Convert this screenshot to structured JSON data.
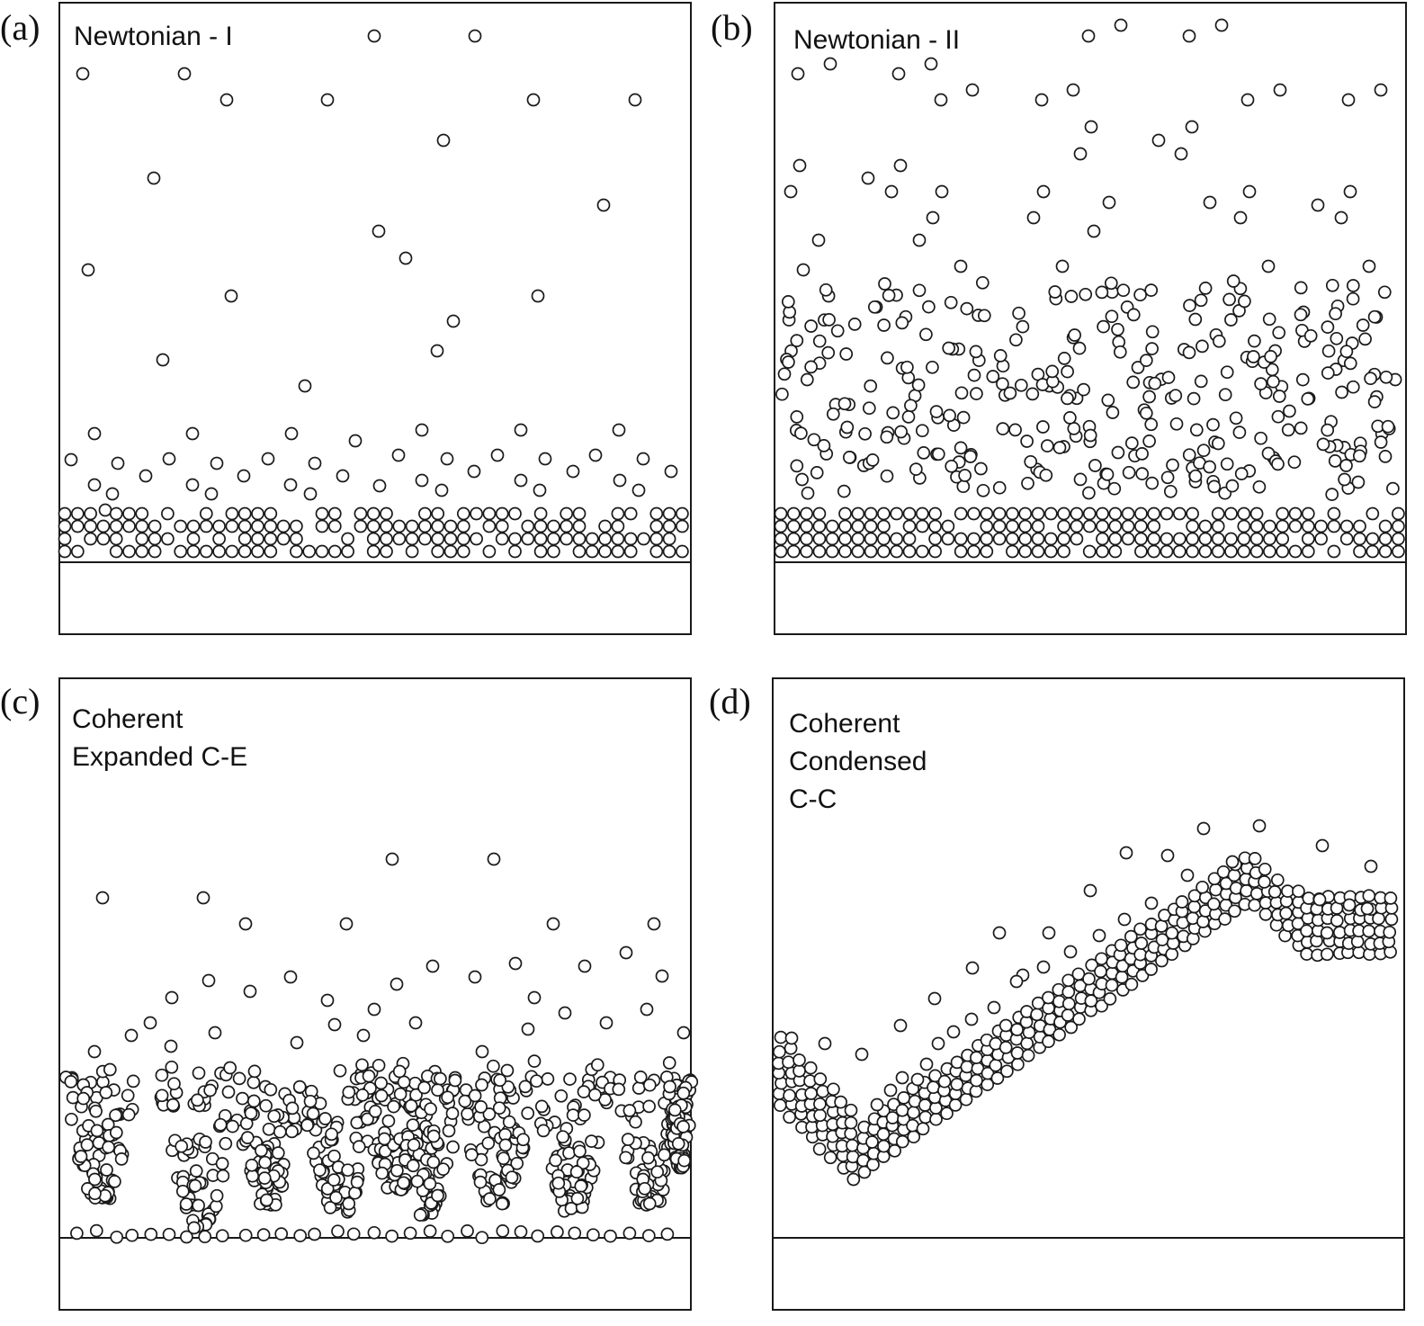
{
  "figure": {
    "panels": [
      {
        "letter": "(a)",
        "title_lines": [
          "Newtonian - I"
        ],
        "regime": "newtonian-1"
      },
      {
        "letter": "(b)",
        "title_lines": [
          "Newtonian - II"
        ],
        "regime": "newtonian-2"
      },
      {
        "letter": "(c)",
        "title_lines": [
          "Coherent",
          "Expanded C-E"
        ],
        "regime": "coherent-expanded"
      },
      {
        "letter": "(d)",
        "title_lines": [
          "Coherent",
          "Condensed",
          "C-C"
        ],
        "regime": "coherent-condensed"
      }
    ]
  },
  "colors": {
    "stroke": "#1a1a1a",
    "particle_fill": "#ffffff",
    "background": "#ffffff"
  }
}
